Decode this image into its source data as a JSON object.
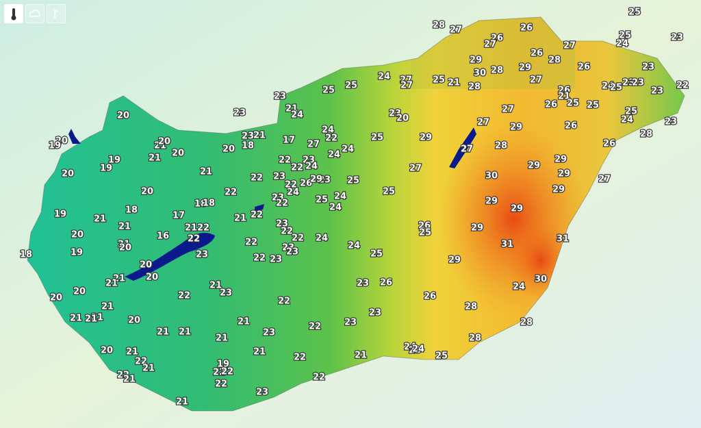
{
  "temperatures": [
    28,
    27,
    25,
    26,
    26,
    27,
    25,
    23,
    24,
    27,
    26,
    28,
    29,
    29,
    26,
    23,
    30,
    28,
    24,
    27,
    27,
    25,
    21,
    28,
    27,
    23,
    25,
    25,
    24,
    25,
    23,
    23,
    23,
    22,
    26,
    21,
    25,
    26,
    25,
    27,
    21,
    24,
    23,
    23,
    20,
    25,
    24,
    23,
    27,
    29,
    26,
    28,
    20,
    24,
    22,
    23,
    21,
    25,
    29,
    20,
    19,
    21,
    20,
    18,
    20,
    17,
    27,
    24,
    28,
    26,
    27,
    20,
    21,
    19,
    19,
    22,
    23,
    24,
    29,
    29,
    27,
    20,
    21,
    22,
    23,
    22,
    24,
    29,
    30,
    23,
    25,
    22,
    26,
    29,
    27,
    20,
    22,
    24,
    23,
    25,
    24,
    25,
    29,
    22,
    24,
    29,
    29,
    19,
    18,
    18,
    17,
    18,
    21,
    21,
    22,
    23,
    26,
    25,
    29,
    21,
    21,
    22,
    20,
    16,
    22,
    22,
    22,
    24,
    22,
    21,
    20,
    23,
    24,
    31,
    31,
    18,
    19,
    23,
    22,
    23,
    23,
    25,
    29,
    20,
    21,
    21,
    20,
    21,
    23,
    23,
    26,
    30,
    24,
    20,
    20,
    22,
    21,
    22,
    26,
    28,
    21,
    21,
    21,
    20,
    21,
    23,
    23,
    22,
    28,
    21,
    21,
    21,
    23,
    28,
    20,
    21,
    21,
    24,
    23,
    24,
    25,
    21,
    22,
    22,
    21,
    19,
    22,
    22,
    22,
    21,
    22,
    22,
    23,
    21
  ]
}
